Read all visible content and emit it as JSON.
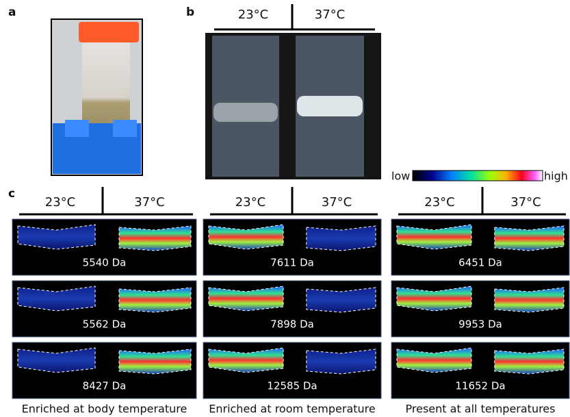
{
  "panels": {
    "a": {
      "label": "a"
    },
    "b": {
      "label": "b",
      "temps": [
        "23°C",
        "37°C"
      ]
    },
    "c": {
      "label": "c",
      "colorbar": {
        "low": "low",
        "high": "high"
      },
      "groups": [
        {
          "temps": [
            "23°C",
            "37°C"
          ],
          "images": [
            {
              "label": "5540 Da"
            },
            {
              "label": "5562 Da"
            },
            {
              "label": "8427 Da"
            }
          ],
          "caption": "Enriched at body temperature"
        },
        {
          "temps": [
            "23°C",
            "37°C"
          ],
          "images": [
            {
              "label": "7611 Da"
            },
            {
              "label": "7898 Da"
            },
            {
              "label": "12585 Da"
            }
          ],
          "caption": "Enriched at room temperature"
        },
        {
          "temps": [
            "23°C",
            "37°C"
          ],
          "images": [
            {
              "label": "6451 Da"
            },
            {
              "label": "9953 Da"
            },
            {
              "label": "11652 Da"
            }
          ],
          "caption": "Present at all temperatures"
        }
      ]
    }
  }
}
